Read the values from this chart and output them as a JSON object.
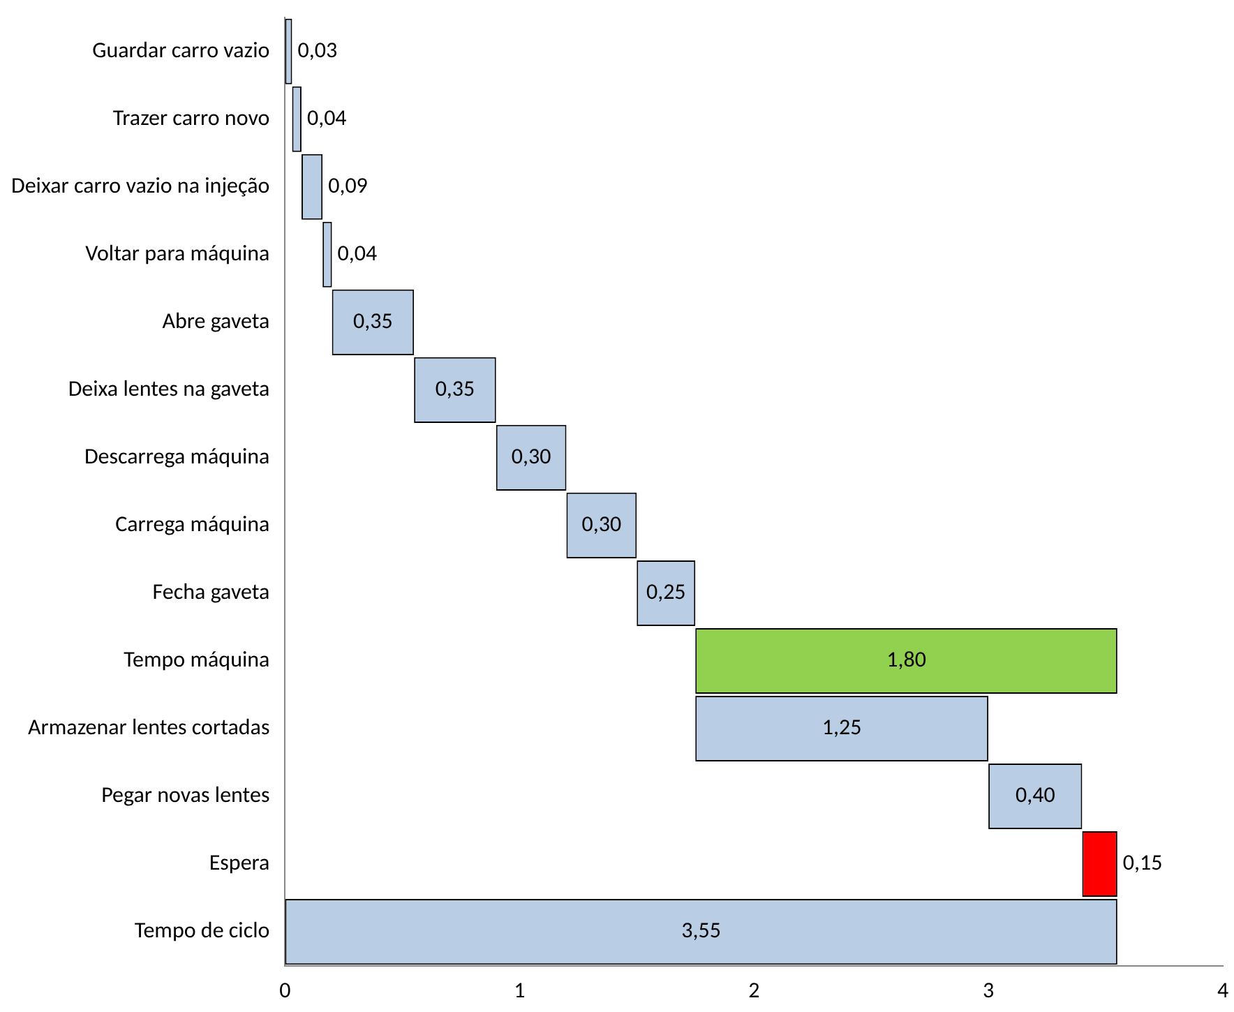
{
  "chart_data": {
    "type": "bar",
    "orientation": "horizontal",
    "categories": [
      "Guardar carro vazio",
      "Trazer carro novo",
      "Deixar carro vazio na injeção",
      "Voltar para máquina",
      "Abre gaveta",
      "Deixa lentes na gaveta",
      "Descarrega máquina",
      "Carrega máquina",
      "Fecha gaveta",
      "Tempo máquina",
      "Armazenar lentes cortadas",
      "Pegar novas lentes",
      "Espera",
      "Tempo de ciclo"
    ],
    "values": [
      0.03,
      0.04,
      0.09,
      0.04,
      0.35,
      0.35,
      0.3,
      0.3,
      0.25,
      1.8,
      1.25,
      0.4,
      0.15,
      3.55
    ],
    "base": [
      0,
      0.03,
      0.07,
      0.16,
      0.2,
      0.55,
      0.9,
      1.2,
      1.5,
      1.75,
      1.75,
      3.0,
      3.4,
      0
    ],
    "colors": [
      "#b9cde5",
      "#b9cde5",
      "#b9cde5",
      "#b9cde5",
      "#b9cde5",
      "#b9cde5",
      "#b9cde5",
      "#b9cde5",
      "#b9cde5",
      "#92d050",
      "#b9cde5",
      "#b9cde5",
      "#ff0000",
      "#b9cde5"
    ],
    "value_labels": [
      "0,03",
      "0,04",
      "0,09",
      "0,04",
      "0,35",
      "0,35",
      "0,30",
      "0,30",
      "0,25",
      "1,80",
      "1,25",
      "0,40",
      "0,15",
      "3,55"
    ],
    "xlim": [
      0,
      4
    ],
    "xticks": [
      0,
      1,
      2,
      3,
      4
    ],
    "grid": false,
    "legend": false
  }
}
